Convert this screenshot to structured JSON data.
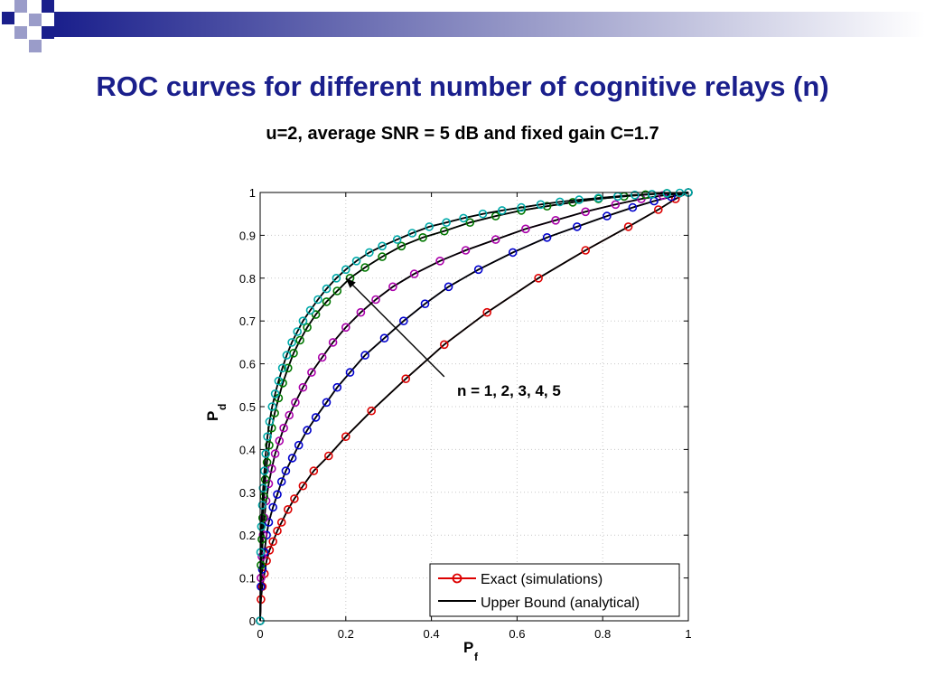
{
  "slide": {
    "title": "ROC curves for different number of cognitive relays (n)",
    "title_color": "#1a1f8c",
    "decoration_colors": [
      "#1a1f8c",
      "#9a9cc9",
      "#ffffff"
    ]
  },
  "chart_data": {
    "type": "line",
    "title": "u=2, average SNR = 5 dB and fixed gain C=1.7",
    "xlabel": "P",
    "xlabel_sub": "f",
    "ylabel": "P",
    "ylabel_sub": "d",
    "xlim": [
      0,
      1
    ],
    "ylim": [
      0,
      1
    ],
    "xticks": [
      "0",
      "0.2",
      "0.4",
      "0.6",
      "0.8",
      "1"
    ],
    "yticks": [
      "0",
      "0.1",
      "0.2",
      "0.3",
      "0.4",
      "0.5",
      "0.6",
      "0.7",
      "0.8",
      "0.9",
      "1"
    ],
    "grid": true,
    "legend_position": "bottom-right",
    "legend": [
      {
        "label": "Exact (simulations)",
        "color": "#dd0000",
        "marker": "circle"
      },
      {
        "label": "Upper Bound (analytical)",
        "color": "#000000",
        "marker": "none"
      }
    ],
    "annotation": {
      "text": "n = 1, 2, 3, 4, 5",
      "arrow_from": [
        0.43,
        0.57
      ],
      "arrow_to": [
        0.2,
        0.8
      ]
    },
    "upper_bound_color": "#000000",
    "series": [
      {
        "n": 1,
        "color": "#dd0000",
        "x": [
          0,
          0.002,
          0.005,
          0.01,
          0.015,
          0.022,
          0.03,
          0.04,
          0.05,
          0.065,
          0.08,
          0.1,
          0.125,
          0.16,
          0.2,
          0.26,
          0.34,
          0.43,
          0.53,
          0.65,
          0.76,
          0.86,
          0.93,
          0.97,
          1
        ],
        "y": [
          0,
          0.05,
          0.08,
          0.11,
          0.14,
          0.165,
          0.185,
          0.21,
          0.23,
          0.26,
          0.285,
          0.315,
          0.35,
          0.385,
          0.43,
          0.49,
          0.565,
          0.645,
          0.72,
          0.8,
          0.865,
          0.92,
          0.96,
          0.985,
          1
        ]
      },
      {
        "n": 2,
        "color": "#0000cc",
        "x": [
          0,
          0.002,
          0.005,
          0.01,
          0.015,
          0.02,
          0.03,
          0.04,
          0.05,
          0.06,
          0.075,
          0.09,
          0.11,
          0.13,
          0.155,
          0.18,
          0.21,
          0.245,
          0.29,
          0.335,
          0.385,
          0.44,
          0.51,
          0.59,
          0.67,
          0.74,
          0.81,
          0.87,
          0.92,
          0.96,
          1
        ],
        "y": [
          0,
          0.08,
          0.12,
          0.16,
          0.2,
          0.23,
          0.265,
          0.295,
          0.325,
          0.35,
          0.38,
          0.41,
          0.445,
          0.475,
          0.51,
          0.545,
          0.58,
          0.62,
          0.66,
          0.7,
          0.74,
          0.78,
          0.82,
          0.86,
          0.895,
          0.92,
          0.945,
          0.965,
          0.98,
          0.99,
          1
        ]
      },
      {
        "n": 3,
        "color": "#aa00aa",
        "x": [
          0,
          0.002,
          0.004,
          0.007,
          0.01,
          0.014,
          0.02,
          0.027,
          0.035,
          0.045,
          0.055,
          0.068,
          0.082,
          0.1,
          0.12,
          0.145,
          0.17,
          0.2,
          0.235,
          0.27,
          0.31,
          0.36,
          0.42,
          0.48,
          0.55,
          0.62,
          0.69,
          0.76,
          0.83,
          0.89,
          0.94,
          1
        ],
        "y": [
          0,
          0.1,
          0.15,
          0.2,
          0.24,
          0.28,
          0.32,
          0.355,
          0.39,
          0.42,
          0.45,
          0.48,
          0.51,
          0.545,
          0.58,
          0.615,
          0.65,
          0.685,
          0.72,
          0.75,
          0.78,
          0.81,
          0.84,
          0.865,
          0.89,
          0.915,
          0.935,
          0.955,
          0.972,
          0.985,
          0.993,
          1
        ]
      },
      {
        "n": 4,
        "color": "#007700",
        "x": [
          0,
          0.002,
          0.004,
          0.006,
          0.009,
          0.012,
          0.016,
          0.021,
          0.027,
          0.034,
          0.043,
          0.053,
          0.065,
          0.078,
          0.093,
          0.11,
          0.13,
          0.155,
          0.18,
          0.21,
          0.245,
          0.285,
          0.33,
          0.38,
          0.43,
          0.49,
          0.55,
          0.61,
          0.67,
          0.73,
          0.79,
          0.85,
          0.9,
          0.95,
          1
        ],
        "y": [
          0,
          0.13,
          0.19,
          0.24,
          0.29,
          0.33,
          0.37,
          0.41,
          0.45,
          0.485,
          0.52,
          0.555,
          0.59,
          0.625,
          0.655,
          0.685,
          0.715,
          0.745,
          0.77,
          0.8,
          0.825,
          0.85,
          0.875,
          0.895,
          0.91,
          0.93,
          0.945,
          0.958,
          0.968,
          0.977,
          0.985,
          0.991,
          0.995,
          0.998,
          1
        ]
      },
      {
        "n": 5,
        "color": "#00aaaa",
        "x": [
          0,
          0.001,
          0.003,
          0.005,
          0.007,
          0.01,
          0.013,
          0.017,
          0.022,
          0.028,
          0.035,
          0.043,
          0.052,
          0.062,
          0.074,
          0.087,
          0.1,
          0.117,
          0.135,
          0.155,
          0.178,
          0.2,
          0.225,
          0.255,
          0.285,
          0.32,
          0.355,
          0.395,
          0.435,
          0.475,
          0.52,
          0.565,
          0.61,
          0.655,
          0.7,
          0.745,
          0.79,
          0.835,
          0.875,
          0.915,
          0.95,
          0.98,
          1
        ],
        "y": [
          0,
          0.16,
          0.22,
          0.27,
          0.31,
          0.35,
          0.39,
          0.43,
          0.465,
          0.5,
          0.53,
          0.56,
          0.59,
          0.62,
          0.65,
          0.675,
          0.7,
          0.725,
          0.75,
          0.775,
          0.8,
          0.82,
          0.84,
          0.86,
          0.875,
          0.89,
          0.905,
          0.92,
          0.93,
          0.94,
          0.95,
          0.958,
          0.965,
          0.972,
          0.978,
          0.983,
          0.987,
          0.991,
          0.994,
          0.996,
          0.998,
          0.999,
          1
        ]
      }
    ]
  }
}
